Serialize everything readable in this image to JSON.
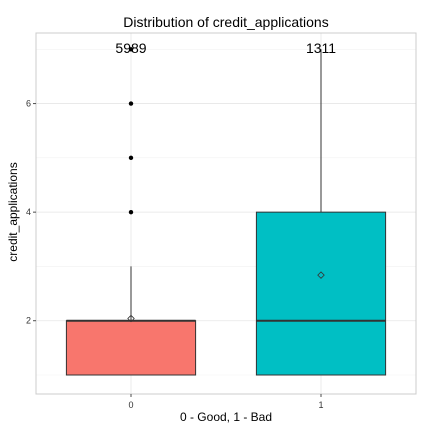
{
  "chart_data": {
    "type": "boxplot",
    "title": "Distribution of credit_applications",
    "xlabel": "0 - Good, 1 - Bad",
    "ylabel": "credit_applications",
    "categories": [
      "0",
      "1"
    ],
    "y_ticks": [
      2,
      4,
      6
    ],
    "y_tick_labels": [
      "2",
      "4",
      "6"
    ],
    "ylim": [
      0.65,
      7.3
    ],
    "grid": true,
    "legend": "none",
    "boxes": [
      {
        "category": "0",
        "count_label": "5989",
        "color": "#F8766D",
        "q1": 1,
        "median": 2,
        "q3": 2,
        "whisker_low": 1,
        "whisker_high": 3,
        "mean": 2.04,
        "outliers": [
          4,
          5,
          6,
          7
        ]
      },
      {
        "category": "1",
        "count_label": "1311",
        "color": "#00BFC4",
        "q1": 1,
        "median": 2,
        "q3": 4,
        "whisker_low": 1,
        "whisker_high": 7,
        "mean": 2.84,
        "outliers": []
      }
    ]
  }
}
